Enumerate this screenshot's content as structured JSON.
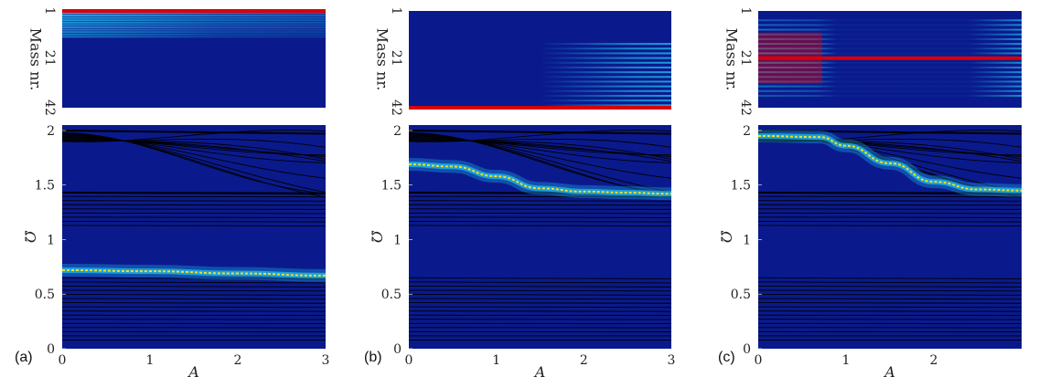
{
  "chart_data": [
    {
      "panel": "(a)",
      "type": "heatmap",
      "top": {
        "ylabel": "Mass nr.",
        "yticks": [
          "1",
          "21",
          "42"
        ],
        "ylim": [
          1,
          42
        ],
        "localized_mass_range": [
          1,
          12
        ],
        "peak_mass": 1,
        "decay_direction": "localization spreads toward mass 1-8 as A increases"
      },
      "bottom": {
        "xlabel": "A",
        "ylabel": "Ω",
        "xlim": [
          0,
          3
        ],
        "ylim": [
          0,
          2.05
        ],
        "xticks": [
          "0",
          "1",
          "2",
          "3"
        ],
        "yticks": [
          "0",
          "0.5",
          "1",
          "1.5",
          "2"
        ],
        "highlighted_branch": {
          "x": [
            0,
            1,
            2,
            3
          ],
          "y": [
            0.72,
            0.71,
            0.69,
            0.67
          ]
        }
      }
    },
    {
      "panel": "(b)",
      "type": "heatmap",
      "top": {
        "ylabel": "Mass nr.",
        "yticks": [
          "1",
          "21",
          "42"
        ],
        "ylim": [
          1,
          42
        ],
        "localized_mass_range": [
          38,
          42
        ],
        "peak_mass": 42,
        "decay_direction": "oscillating pattern spreads across masses for A > 2"
      },
      "bottom": {
        "xlabel": "A",
        "ylabel": "Ω",
        "xlim": [
          0,
          3
        ],
        "ylim": [
          0,
          2.05
        ],
        "xticks": [
          "0",
          "1",
          "2",
          "3"
        ],
        "yticks": [
          "0",
          "0.5",
          "1",
          "1.5",
          "2"
        ],
        "highlighted_branch": {
          "x": [
            0,
            0.5,
            1,
            1.5,
            2,
            2.5,
            3
          ],
          "y": [
            1.69,
            1.67,
            1.58,
            1.47,
            1.44,
            1.43,
            1.42
          ]
        }
      }
    },
    {
      "panel": "(c)",
      "type": "heatmap",
      "top": {
        "ylabel": "Mass nr.",
        "yticks": [
          "1",
          "21",
          "42"
        ],
        "ylim": [
          1,
          42
        ],
        "localized_mass_range": [
          5,
          37
        ],
        "peak_mass": 21,
        "decay_direction": "broad pattern narrows to mass 21 near A = 0.8"
      },
      "bottom": {
        "xlabel": "A",
        "ylabel": "Ω",
        "xlim": [
          0,
          3
        ],
        "ylim": [
          0,
          2.05
        ],
        "xticks": [
          "0",
          "1",
          "2"
        ],
        "yticks": [
          "0",
          "0.5",
          "1",
          "1.5",
          "2"
        ],
        "highlighted_branch": {
          "x": [
            0,
            0.7,
            1,
            1.5,
            2,
            2.5,
            3
          ],
          "y": [
            1.95,
            1.94,
            1.86,
            1.7,
            1.53,
            1.46,
            1.45
          ]
        }
      }
    }
  ],
  "colors": {
    "background": "#0a1a8c",
    "band": "#20b4e8",
    "peak": "#d8000c",
    "highlight": "#f0e020"
  }
}
